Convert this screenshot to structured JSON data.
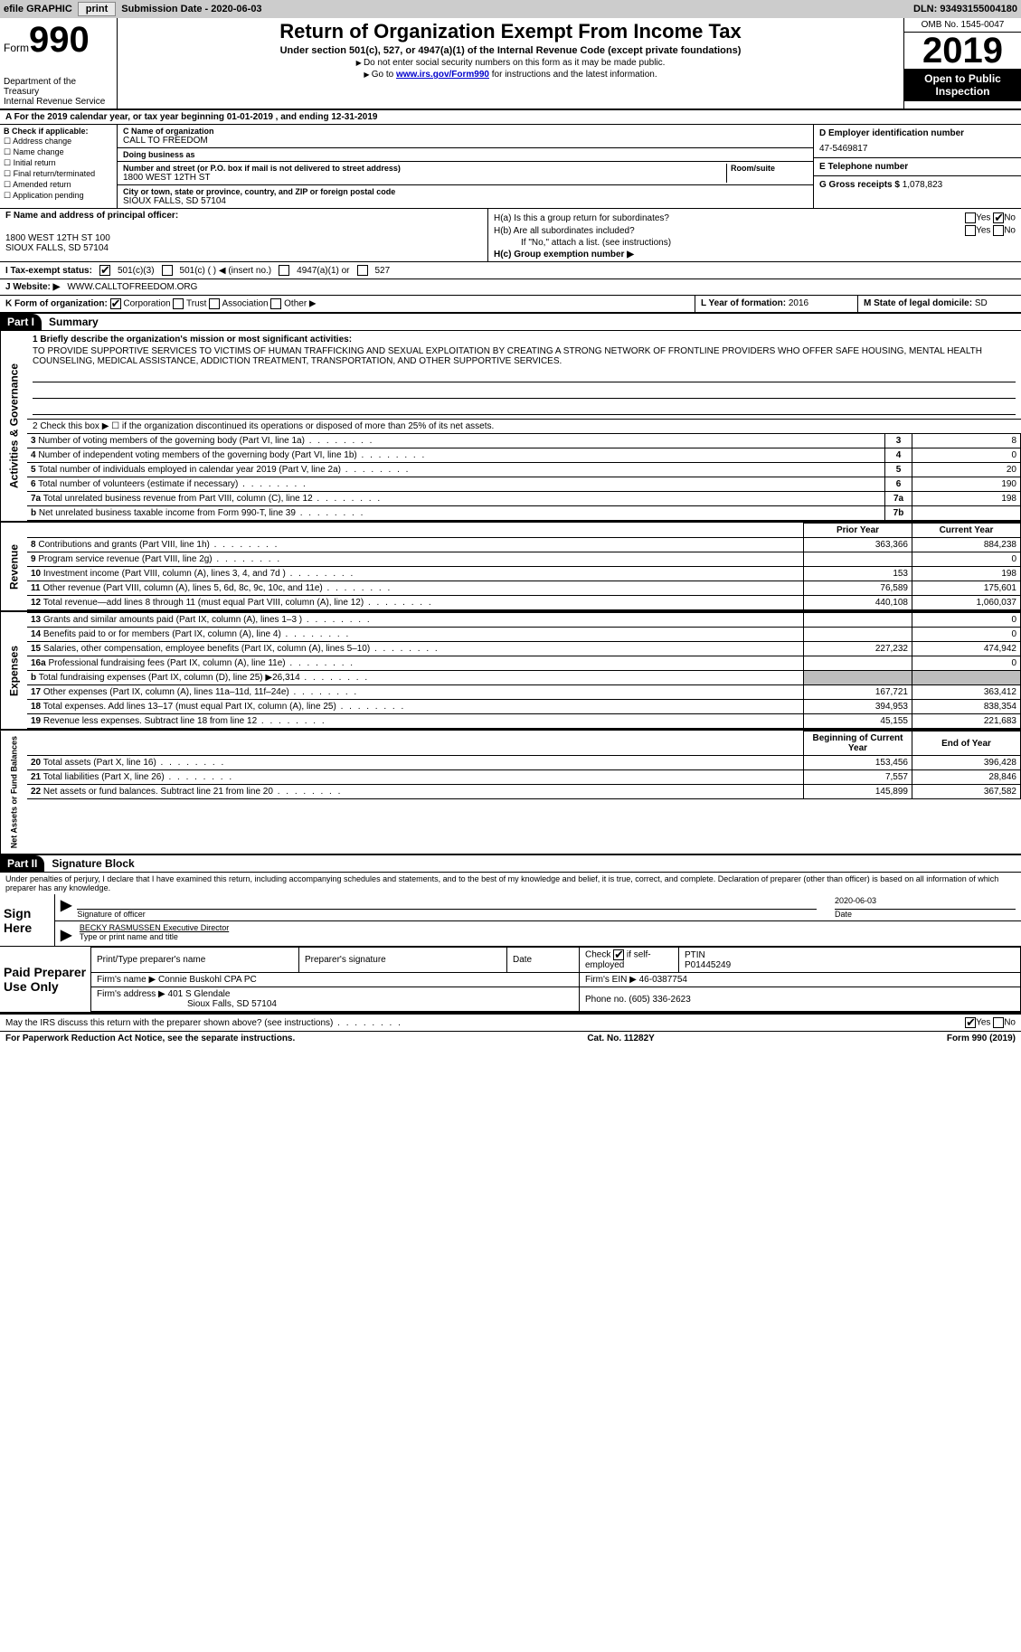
{
  "topbar": {
    "efile": "efile GRAPHIC",
    "print": "print",
    "subdate_label": "Submission Date - ",
    "subdate": "2020-06-03",
    "dln_label": "DLN: ",
    "dln": "93493155004180"
  },
  "header": {
    "form_label": "Form",
    "form_no": "990",
    "dept": "Department of the Treasury\nInternal Revenue Service",
    "title": "Return of Organization Exempt From Income Tax",
    "subtitle": "Under section 501(c), 527, or 4947(a)(1) of the Internal Revenue Code (except private foundations)",
    "note1": "Do not enter social security numbers on this form as it may be made public.",
    "note2_pre": "Go to ",
    "note2_link": "www.irs.gov/Form990",
    "note2_post": " for instructions and the latest information.",
    "omb": "OMB No. 1545-0047",
    "year": "2019",
    "inspect": "Open to Public Inspection"
  },
  "rowA": "For the 2019 calendar year, or tax year beginning 01-01-2019   , and ending 12-31-2019",
  "boxB": {
    "title": "B Check if applicable:",
    "items": [
      "Address change",
      "Name change",
      "Initial return",
      "Final return/terminated",
      "Amended return",
      "Application pending"
    ]
  },
  "boxC": {
    "name_lbl": "C Name of organization",
    "name": "CALL TO FREEDOM",
    "dba_lbl": "Doing business as",
    "dba": "",
    "addr_lbl": "Number and street (or P.O. box if mail is not delivered to street address)",
    "room_lbl": "Room/suite",
    "addr": "1800 WEST 12TH ST",
    "room": "",
    "city_lbl": "City or town, state or province, country, and ZIP or foreign postal code",
    "city": "SIOUX FALLS, SD  57104"
  },
  "boxD": {
    "lbl": "D Employer identification number",
    "val": "47-5469817"
  },
  "boxE": {
    "lbl": "E Telephone number",
    "val": ""
  },
  "boxG": {
    "lbl": "G Gross receipts $",
    "val": "1,078,823"
  },
  "boxF": {
    "lbl": "F  Name and address of principal officer:",
    "line1": "1800 WEST 12TH ST 100",
    "line2": "SIOUX FALLS, SD  57104"
  },
  "boxH": {
    "a_lbl": "H(a)  Is this a group return for subordinates?",
    "b_lbl": "H(b)  Are all subordinates included?",
    "b_note": "If \"No,\" attach a list. (see instructions)",
    "c_lbl": "H(c)  Group exemption number ▶",
    "yes": "Yes",
    "no": "No"
  },
  "rowI": {
    "lbl": "I  Tax-exempt status:",
    "o1": "501(c)(3)",
    "o2": "501(c) (  ) ◀ (insert no.)",
    "o3": "4947(a)(1) or",
    "o4": "527"
  },
  "rowJ": {
    "lbl": "J  Website: ▶",
    "val": "WWW.CALLTOFREEDOM.ORG"
  },
  "rowK": {
    "lbl": "K Form of organization:",
    "o1": "Corporation",
    "o2": "Trust",
    "o3": "Association",
    "o4": "Other ▶",
    "year_lbl": "L Year of formation: ",
    "year": "2016",
    "state_lbl": "M State of legal domicile: ",
    "state": "SD"
  },
  "partI": {
    "tag": "Part I",
    "title": "Summary"
  },
  "sections": {
    "ag": "Activities & Governance",
    "rev": "Revenue",
    "exp": "Expenses",
    "na": "Net Assets or Fund Balances"
  },
  "q1": {
    "lbl": "1  Briefly describe the organization's mission or most significant activities:",
    "val": "TO PROVIDE SUPPORTIVE SERVICES TO VICTIMS OF HUMAN TRAFFICKING AND SEXUAL EXPLOITATION BY CREATING A STRONG NETWORK OF FRONTLINE PROVIDERS WHO OFFER SAFE HOUSING, MENTAL HEALTH COUNSELING, MEDICAL ASSISTANCE, ADDICTION TREATMENT, TRANSPORTATION, AND OTHER SUPPORTIVE SERVICES."
  },
  "q2": "2   Check this box ▶ ☐  if the organization discontinued its operations or disposed of more than 25% of its net assets.",
  "lines_ag": [
    {
      "n": "3",
      "d": "Number of voting members of the governing body (Part VI, line 1a)",
      "ln": "3",
      "v": "8"
    },
    {
      "n": "4",
      "d": "Number of independent voting members of the governing body (Part VI, line 1b)",
      "ln": "4",
      "v": "0"
    },
    {
      "n": "5",
      "d": "Total number of individuals employed in calendar year 2019 (Part V, line 2a)",
      "ln": "5",
      "v": "20"
    },
    {
      "n": "6",
      "d": "Total number of volunteers (estimate if necessary)",
      "ln": "6",
      "v": "190"
    },
    {
      "n": "7a",
      "d": "Total unrelated business revenue from Part VIII, column (C), line 12",
      "ln": "7a",
      "v": "198"
    },
    {
      "n": "b",
      "d": "Net unrelated business taxable income from Form 990-T, line 39",
      "ln": "7b",
      "v": ""
    }
  ],
  "col_hdrs": {
    "py": "Prior Year",
    "cy": "Current Year"
  },
  "lines_rev": [
    {
      "n": "8",
      "d": "Contributions and grants (Part VIII, line 1h)",
      "py": "363,366",
      "cy": "884,238"
    },
    {
      "n": "9",
      "d": "Program service revenue (Part VIII, line 2g)",
      "py": "",
      "cy": "0"
    },
    {
      "n": "10",
      "d": "Investment income (Part VIII, column (A), lines 3, 4, and 7d )",
      "py": "153",
      "cy": "198"
    },
    {
      "n": "11",
      "d": "Other revenue (Part VIII, column (A), lines 5, 6d, 8c, 9c, 10c, and 11e)",
      "py": "76,589",
      "cy": "175,601"
    },
    {
      "n": "12",
      "d": "Total revenue—add lines 8 through 11 (must equal Part VIII, column (A), line 12)",
      "py": "440,108",
      "cy": "1,060,037"
    }
  ],
  "lines_exp": [
    {
      "n": "13",
      "d": "Grants and similar amounts paid (Part IX, column (A), lines 1–3 )",
      "py": "",
      "cy": "0"
    },
    {
      "n": "14",
      "d": "Benefits paid to or for members (Part IX, column (A), line 4)",
      "py": "",
      "cy": "0"
    },
    {
      "n": "15",
      "d": "Salaries, other compensation, employee benefits (Part IX, column (A), lines 5–10)",
      "py": "227,232",
      "cy": "474,942"
    },
    {
      "n": "16a",
      "d": "Professional fundraising fees (Part IX, column (A), line 11e)",
      "py": "",
      "cy": "0"
    },
    {
      "n": "b",
      "d": "Total fundraising expenses (Part IX, column (D), line 25) ▶26,314",
      "py": "GREY",
      "cy": "GREY"
    },
    {
      "n": "17",
      "d": "Other expenses (Part IX, column (A), lines 11a–11d, 11f–24e)",
      "py": "167,721",
      "cy": "363,412"
    },
    {
      "n": "18",
      "d": "Total expenses. Add lines 13–17 (must equal Part IX, column (A), line 25)",
      "py": "394,953",
      "cy": "838,354"
    },
    {
      "n": "19",
      "d": "Revenue less expenses. Subtract line 18 from line 12",
      "py": "45,155",
      "cy": "221,683"
    }
  ],
  "col_hdrs2": {
    "boy": "Beginning of Current Year",
    "eoy": "End of Year"
  },
  "lines_na": [
    {
      "n": "20",
      "d": "Total assets (Part X, line 16)",
      "py": "153,456",
      "cy": "396,428"
    },
    {
      "n": "21",
      "d": "Total liabilities (Part X, line 26)",
      "py": "7,557",
      "cy": "28,846"
    },
    {
      "n": "22",
      "d": "Net assets or fund balances. Subtract line 21 from line 20",
      "py": "145,899",
      "cy": "367,582"
    }
  ],
  "partII": {
    "tag": "Part II",
    "title": "Signature Block"
  },
  "penalty": "Under penalties of perjury, I declare that I have examined this return, including accompanying schedules and statements, and to the best of my knowledge and belief, it is true, correct, and complete. Declaration of preparer (other than officer) is based on all information of which preparer has any knowledge.",
  "sign": {
    "here": "Sign Here",
    "sig_lbl": "Signature of officer",
    "date_lbl": "Date",
    "date": "2020-06-03",
    "name": "BECKY RASMUSSEN  Executive Director",
    "name_lbl": "Type or print name and title"
  },
  "prep": {
    "lbl": "Paid Preparer Use Only",
    "h1": "Print/Type preparer's name",
    "h2": "Preparer's signature",
    "h3": "Date",
    "h4_pre": "Check",
    "h4_post": "if self-employed",
    "h5": "PTIN",
    "ptin": "P01445249",
    "firm_lbl": "Firm's name   ▶",
    "firm": "Connie Buskohl CPA PC",
    "ein_lbl": "Firm's EIN ▶",
    "ein": "46-0387754",
    "addr_lbl": "Firm's address ▶",
    "addr1": "401 S Glendale",
    "addr2": "Sioux Falls, SD  57104",
    "phone_lbl": "Phone no.",
    "phone": "(605) 336-2623"
  },
  "mayirs": {
    "q": "May the IRS discuss this return with the preparer shown above? (see instructions)",
    "yes": "Yes",
    "no": "No"
  },
  "footer": {
    "l": "For Paperwork Reduction Act Notice, see the separate instructions.",
    "m": "Cat. No. 11282Y",
    "r": "Form 990 (2019)"
  }
}
